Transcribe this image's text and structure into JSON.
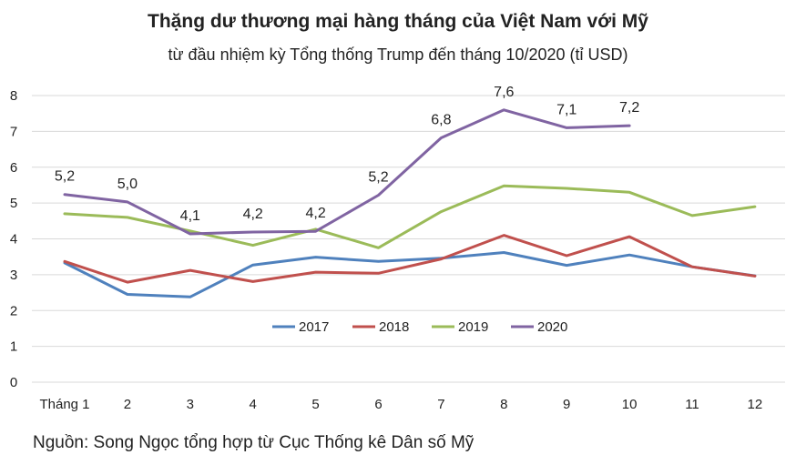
{
  "chart_data": {
    "type": "line",
    "title": "Thặng dư thương mại hàng tháng của Việt Nam với Mỹ",
    "subtitle": "từ đầu nhiệm kỳ Tổng thống Trump đến tháng 10/2020 (tỉ USD)",
    "source": "Nguồn: Song Ngọc tổng hợp từ Cục Thống kê Dân số Mỹ",
    "categories": [
      "Tháng 1",
      "2",
      "3",
      "4",
      "5",
      "6",
      "7",
      "8",
      "9",
      "10",
      "11",
      "12"
    ],
    "ylim": [
      0,
      8
    ],
    "yticks": [
      "0",
      "1",
      "2",
      "3",
      "4",
      "5",
      "6",
      "7",
      "8"
    ],
    "grid": true,
    "legend_position": "bottom-center inside plot",
    "series": [
      {
        "name": "2017",
        "color": "#4f81bd",
        "values": [
          3.33,
          2.45,
          2.38,
          3.27,
          3.49,
          3.37,
          3.46,
          3.62,
          3.26,
          3.55,
          3.22,
          2.97
        ]
      },
      {
        "name": "2018",
        "color": "#c0504d",
        "values": [
          3.37,
          2.79,
          3.12,
          2.81,
          3.07,
          3.04,
          3.44,
          4.1,
          3.53,
          4.06,
          3.22,
          2.96
        ]
      },
      {
        "name": "2019",
        "color": "#9bbb59",
        "values": [
          4.7,
          4.6,
          4.22,
          3.82,
          4.27,
          3.75,
          4.76,
          5.48,
          5.41,
          5.3,
          4.65,
          4.9
        ]
      },
      {
        "name": "2020",
        "color": "#8064a2",
        "values": [
          5.24,
          5.03,
          4.14,
          4.19,
          4.21,
          5.22,
          6.82,
          7.6,
          7.1,
          7.16,
          null,
          null
        ],
        "labels": [
          "5,2",
          "5,0",
          "4,1",
          "4,2",
          "4,2",
          "5,2",
          "6,8",
          "7,6",
          "7,1",
          "7,2",
          null,
          null
        ]
      }
    ]
  }
}
